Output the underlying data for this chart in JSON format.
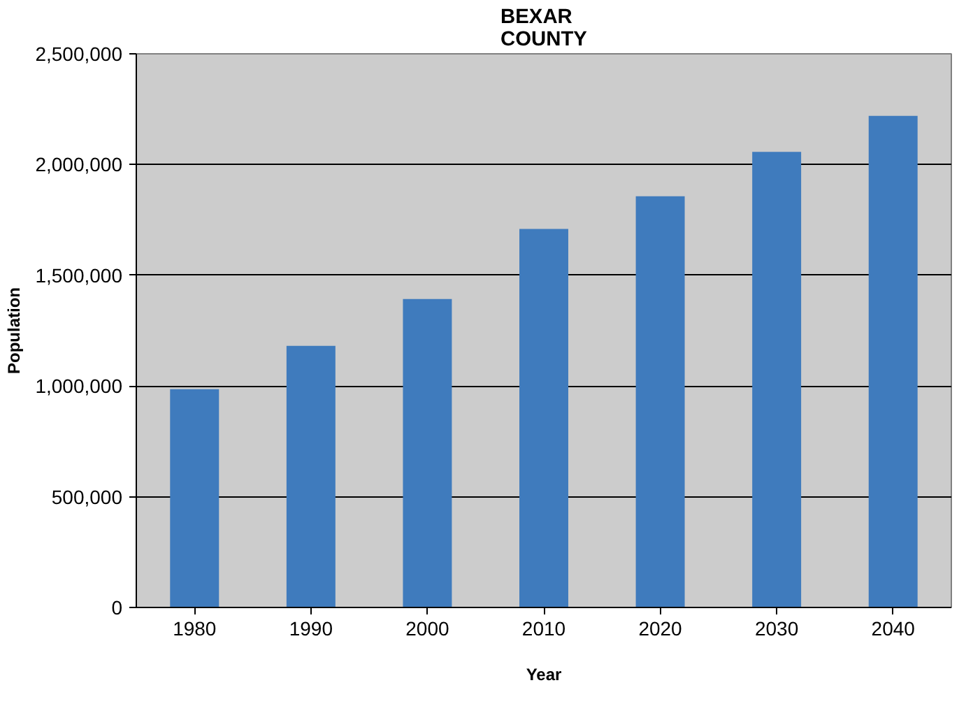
{
  "chart_data": {
    "type": "bar",
    "title": "BEXAR\nCOUNTY",
    "xlabel": "Year",
    "ylabel": "Population",
    "categories": [
      "1980",
      "1990",
      "2000",
      "2010",
      "2020",
      "2030",
      "2040"
    ],
    "values": [
      986000,
      1181000,
      1393000,
      1709000,
      1857000,
      2057000,
      2220000
    ],
    "color": "#3f7bbd",
    "ylim": [
      0,
      2500000
    ],
    "yticks": [
      {
        "value": 0,
        "label": "0"
      },
      {
        "value": 500000,
        "label": "500,000"
      },
      {
        "value": 1000000,
        "label": "1,000,000"
      },
      {
        "value": 1500000,
        "label": "1,500,000"
      },
      {
        "value": 2000000,
        "label": "2,000,000"
      },
      {
        "value": 2500000,
        "label": "2,500,000"
      }
    ],
    "grid": "y"
  }
}
